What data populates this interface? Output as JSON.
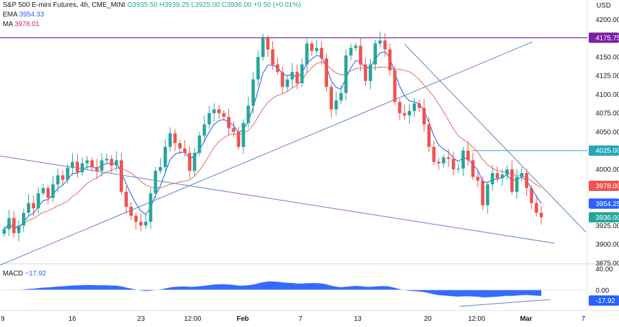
{
  "header": {
    "title": "S&P 500 E-mini Futures, 4h, CME_MINI",
    "open": "O3935.50",
    "high": "H3939.25",
    "low": "L3925.00",
    "close": "C3936.00",
    "change": "+0.50 (+0.01%)",
    "ema_label": "EMA",
    "ema_value": "3954.33",
    "ma_label": "MA",
    "ma_value": "3978.01",
    "currency": "USD"
  },
  "macd": {
    "label": "MACD",
    "value": "−17.92",
    "axis": [
      "40.00",
      "0.00",
      "-17.92"
    ]
  },
  "colors": {
    "up": "#26a69a",
    "down": "#ef5350",
    "ema": "#2962ff",
    "ma": "#e57373",
    "trend": "#5b7fc7",
    "resistance": "#7b1fa2",
    "support": "#26a6b8",
    "macd": "#2962ff"
  },
  "chart_data": {
    "type": "candlestick",
    "title": "S&P 500 E-mini Futures, 4h, CME_MINI",
    "y_axis": {
      "ticks": [
        "4200.00",
        "4150.00",
        "4125.00",
        "4100.00",
        "4075.00",
        "4050.00",
        "4000.00",
        "3925.00",
        "3900.00",
        "3875.00"
      ],
      "range": [
        3863,
        4222
      ]
    },
    "x_axis": {
      "ticks": [
        "9",
        "16",
        "23",
        "12:00",
        "Feb",
        "7",
        "13",
        "20",
        "12:00",
        "Mar",
        "7"
      ]
    },
    "price_labels": [
      {
        "text": "4175.75",
        "value": 4175.75,
        "color": "#7b1fa2"
      },
      {
        "text": "4025.00",
        "value": 4025.0,
        "color": "#26a6b8"
      },
      {
        "text": "3978.00",
        "value": 3978.0,
        "color": "#ef5350"
      },
      {
        "text": "3954.25",
        "value": 3954.25,
        "color": "#2962ff"
      },
      {
        "text": "3936.00",
        "value": 3936.0,
        "color": "#26a69a"
      }
    ],
    "levels": [
      {
        "name": "resistance",
        "value": 4175.75
      },
      {
        "name": "support",
        "value": 4025.0
      }
    ],
    "closes": [
      3920,
      3935,
      3915,
      3925,
      3942,
      3955,
      3948,
      3968,
      3975,
      3962,
      3980,
      3992,
      3986,
      4002,
      4010,
      3996,
      4008,
      4012,
      4003,
      3998,
      4012,
      4014,
      4005,
      4012,
      3970,
      3950,
      3938,
      3930,
      3925,
      3930,
      3968,
      3998,
      4003,
      4030,
      4048,
      4035,
      4028,
      4022,
      3998,
      4022,
      4045,
      4060,
      4075,
      4080,
      4075,
      4070,
      4055,
      4050,
      4030,
      4062,
      4085,
      4120,
      4150,
      4175,
      4160,
      4140,
      4130,
      4110,
      4120,
      4130,
      4115,
      4140,
      4168,
      4158,
      4162,
      4148,
      4110,
      4080,
      4092,
      4102,
      4152,
      4162,
      4165,
      4140,
      4118,
      4140,
      4168,
      4172,
      4160,
      4132,
      4090,
      4075,
      4072,
      4078,
      4088,
      4082,
      4060,
      4030,
      4010,
      4008,
      4016,
      4014,
      4000,
      4001,
      4025,
      4012,
      3990,
      3985,
      3952,
      3980,
      3995,
      3988,
      3993,
      4000,
      3970,
      3990,
      3995,
      3975,
      3955,
      3942,
      3936
    ]
  }
}
